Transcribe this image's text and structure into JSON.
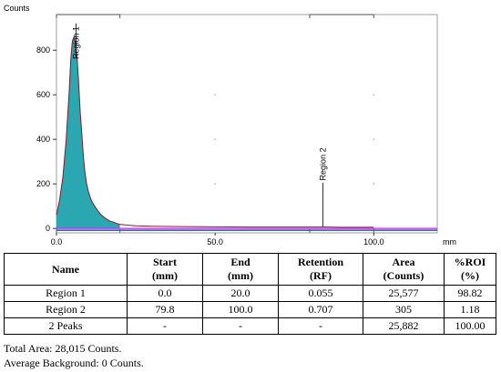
{
  "chart_data": {
    "type": "area",
    "ylabel": "Counts",
    "xlabel": "mm",
    "xlim": [
      0,
      120
    ],
    "ylim": [
      -20,
      960
    ],
    "xticks": [
      "0.0",
      "50.0",
      "100.0"
    ],
    "yticks": [
      "0",
      "200",
      "400",
      "600",
      "800"
    ],
    "grid": false,
    "x": [
      0,
      1,
      2,
      3,
      4,
      4.5,
      5,
      5.5,
      6,
      6.5,
      7,
      7.5,
      8,
      8.5,
      9,
      9.5,
      10,
      10.5,
      11,
      12,
      13,
      14,
      15,
      16,
      17,
      18,
      19,
      20,
      22,
      25,
      30,
      40,
      50,
      60,
      70,
      79.8,
      85,
      90,
      95,
      100
    ],
    "y": [
      60,
      130,
      230,
      390,
      610,
      760,
      840,
      860,
      830,
      770,
      650,
      520,
      420,
      320,
      250,
      200,
      170,
      145,
      125,
      100,
      80,
      62,
      50,
      40,
      32,
      28,
      22,
      18,
      15,
      12,
      10,
      8,
      7,
      6,
      6,
      6,
      6,
      5,
      5,
      5
    ],
    "series": [
      {
        "values": [
          60,
          130,
          230,
          390,
          610,
          760,
          840,
          860,
          830,
          770,
          650,
          520,
          420,
          320,
          250,
          200,
          170,
          145,
          125,
          100,
          80,
          62,
          50,
          40,
          32,
          28,
          22,
          18,
          15,
          12,
          10,
          8,
          7,
          6,
          6,
          6,
          6,
          5,
          5,
          5
        ],
        "color": "#2aa7b0"
      }
    ],
    "regions": [
      {
        "label": "Region 1",
        "start": 0.0,
        "end": 20.0,
        "color": "#2aa7b0"
      },
      {
        "label": "Region 2",
        "start": 79.8,
        "end": 100.0
      }
    ],
    "baseline_color": "#ff00ff",
    "axis_color": "#1f4fd0"
  },
  "table": {
    "headers": [
      {
        "l1": "Name",
        "l2": ""
      },
      {
        "l1": "Start",
        "l2": "(mm)"
      },
      {
        "l1": "End",
        "l2": "(mm)"
      },
      {
        "l1": "Retention",
        "l2": "(RF)"
      },
      {
        "l1": "Area",
        "l2": "(Counts)"
      },
      {
        "l1": "%ROI",
        "l2": "(%)"
      }
    ],
    "rows": [
      [
        "Region 1",
        "0.0",
        "20.0",
        "0.055",
        "25,577",
        "98.82"
      ],
      [
        "Region 2",
        "79.8",
        "100.0",
        "0.707",
        "305",
        "1.18"
      ],
      [
        "2 Peaks",
        "-",
        "-",
        "-",
        "25,882",
        "100.00"
      ]
    ]
  },
  "summary": {
    "total_area": "Total Area: 28,015 Counts.",
    "average_background": "Average Background: 0 Counts."
  }
}
